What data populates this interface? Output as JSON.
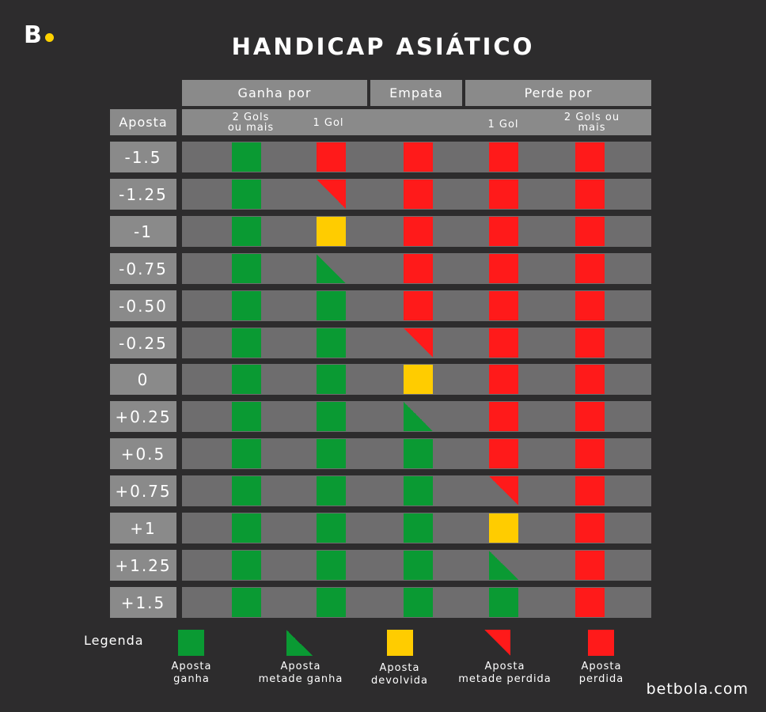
{
  "logo": {
    "letter": "B",
    "dot_color": "#ffd200"
  },
  "title": "HANDICAP ASIÁTICO",
  "headers": {
    "ganha_por": "Ganha por",
    "empata": "Empata",
    "perde_por": "Perde por",
    "aposta": "Aposta"
  },
  "subheaders": {
    "ganha_2": "2 Gols ou mais",
    "ganha_1": "1 Gol",
    "perde_1": "1 Gol",
    "perde_2": "2 Gols ou mais"
  },
  "colors": {
    "green": "#0a9a33",
    "red": "#ff1a1a",
    "yellow": "#ffcc00",
    "row": "#6e6d6e",
    "header": "#8a8a8a",
    "background": "#2d2c2d"
  },
  "rows": [
    {
      "aposta": "-1.5",
      "cells": [
        "win",
        "loss",
        "loss",
        "loss",
        "loss"
      ]
    },
    {
      "aposta": "-1.25",
      "cells": [
        "win",
        "half-loss",
        "loss",
        "loss",
        "loss"
      ]
    },
    {
      "aposta": "-1",
      "cells": [
        "win",
        "refund",
        "loss",
        "loss",
        "loss"
      ]
    },
    {
      "aposta": "-0.75",
      "cells": [
        "win",
        "half-win",
        "loss",
        "loss",
        "loss"
      ]
    },
    {
      "aposta": "-0.50",
      "cells": [
        "win",
        "win",
        "loss",
        "loss",
        "loss"
      ]
    },
    {
      "aposta": "-0.25",
      "cells": [
        "win",
        "win",
        "half-loss",
        "loss",
        "loss"
      ]
    },
    {
      "aposta": "0",
      "cells": [
        "win",
        "win",
        "refund",
        "loss",
        "loss"
      ]
    },
    {
      "aposta": "+0.25",
      "cells": [
        "win",
        "win",
        "half-win",
        "loss",
        "loss"
      ]
    },
    {
      "aposta": "+0.5",
      "cells": [
        "win",
        "win",
        "win",
        "loss",
        "loss"
      ]
    },
    {
      "aposta": "+0.75",
      "cells": [
        "win",
        "win",
        "win",
        "half-loss",
        "loss"
      ]
    },
    {
      "aposta": "+1",
      "cells": [
        "win",
        "win",
        "win",
        "refund",
        "loss"
      ]
    },
    {
      "aposta": "+1.25",
      "cells": [
        "win",
        "win",
        "win",
        "half-win",
        "loss"
      ]
    },
    {
      "aposta": "+1.5",
      "cells": [
        "win",
        "win",
        "win",
        "win",
        "loss"
      ]
    }
  ],
  "legend": {
    "title": "Legenda",
    "items": [
      {
        "type": "win",
        "label": "Aposta ganha"
      },
      {
        "type": "half-win",
        "label": "Aposta metade ganha"
      },
      {
        "type": "refund",
        "label": "Aposta devolvida"
      },
      {
        "type": "half-loss",
        "label": "Aposta metade perdida"
      },
      {
        "type": "loss",
        "label": "Aposta perdida"
      }
    ]
  },
  "brand": "betbola.com"
}
